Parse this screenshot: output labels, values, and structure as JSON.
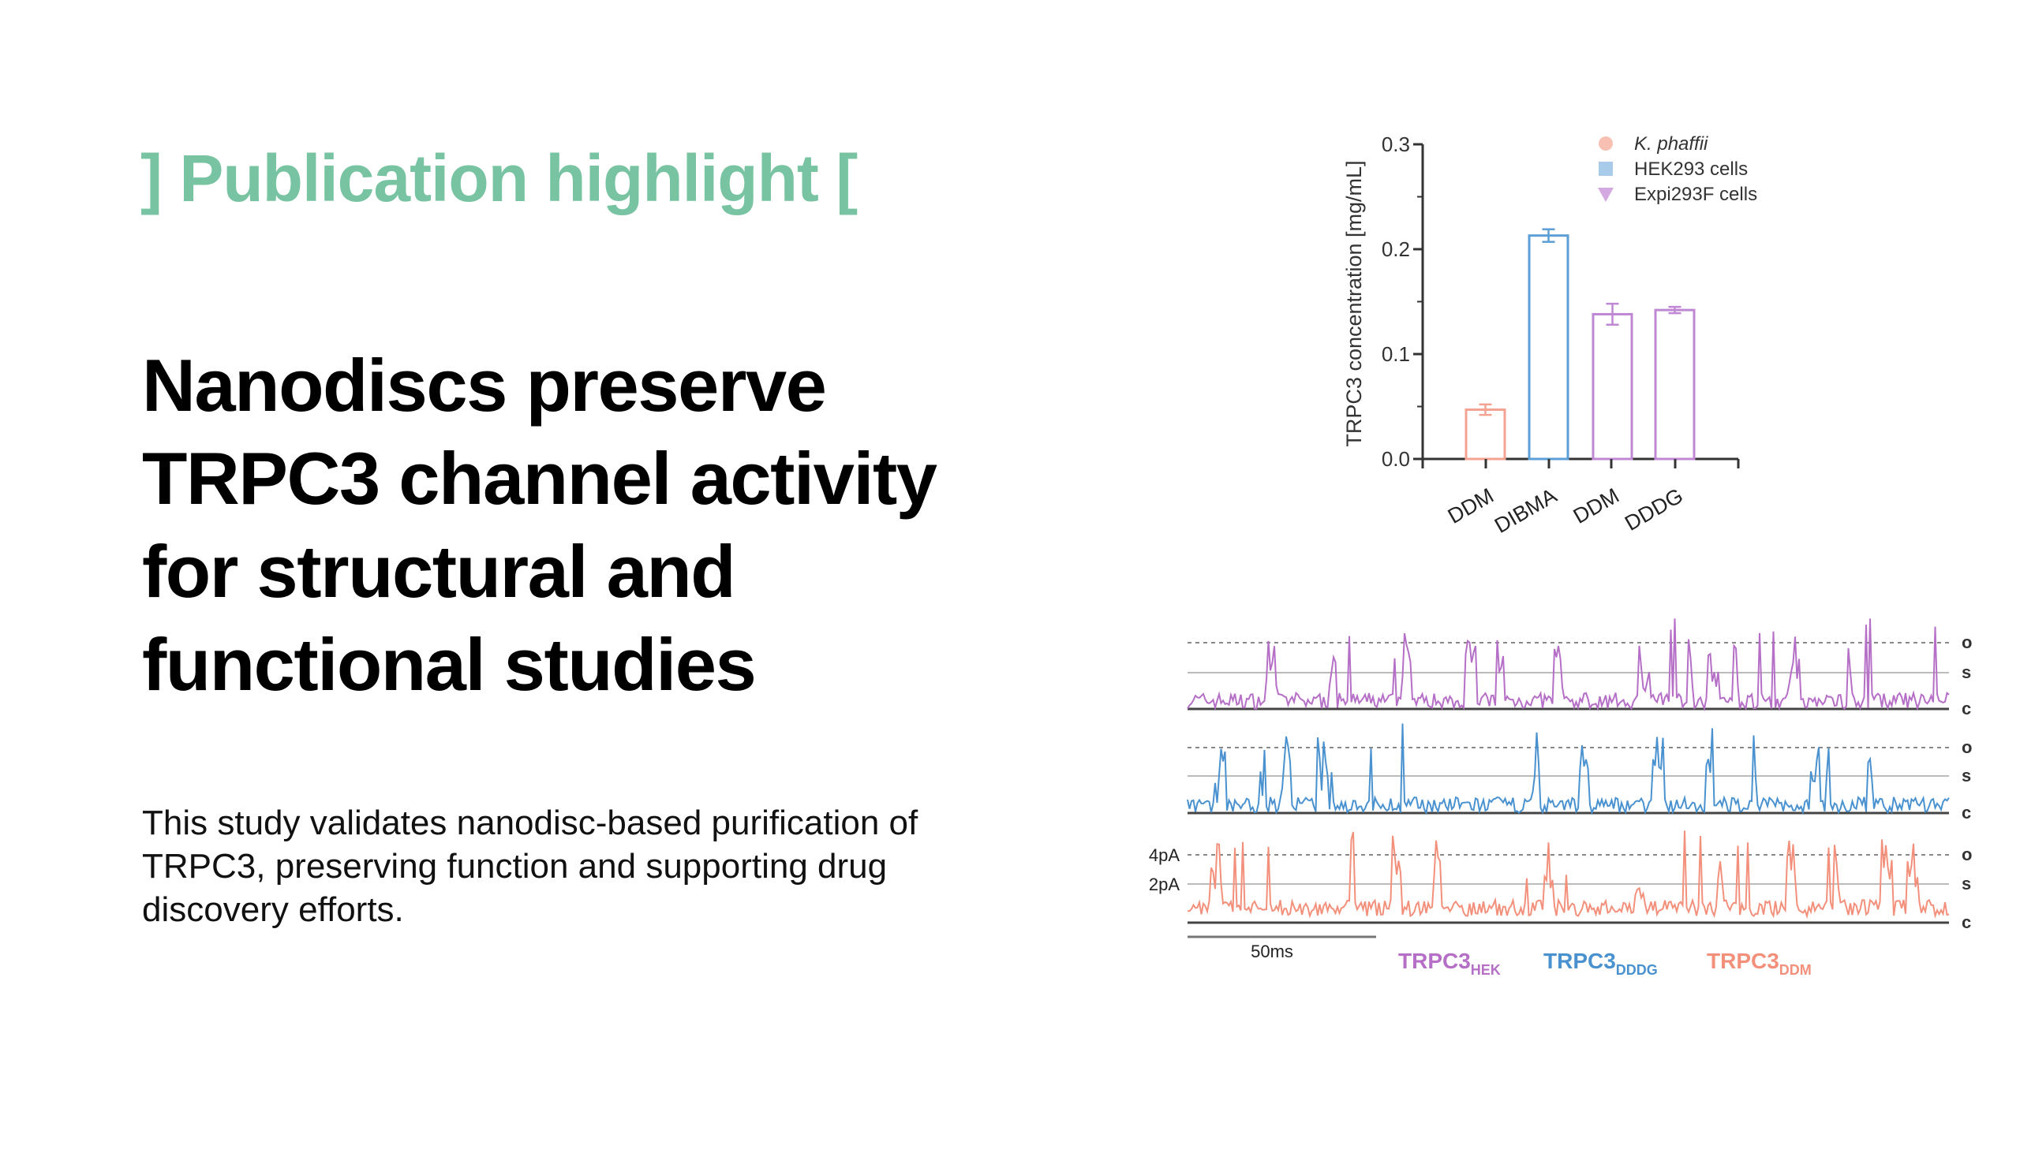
{
  "header": {
    "bracket_left": "]",
    "kicker": "Publication highlight",
    "bracket_right": "[",
    "accent_color": "#78c4a2"
  },
  "title_lines": [
    "Nanodiscs preserve",
    "TRPC3 channel activity",
    "for structural and",
    "functional studies"
  ],
  "description": "This study validates nanodisc-based purification of TRPC3, preserving function and supporting drug discovery efforts.",
  "chart_data": [
    {
      "type": "bar",
      "ylabel": "TRPC3 concentration [mg/mL]",
      "ylim": [
        0,
        0.3
      ],
      "yticks": [
        "0.0",
        "0.1",
        "0.2",
        "0.3"
      ],
      "ytick_values": [
        0,
        0.1,
        0.2,
        0.3
      ],
      "categories": [
        "DDM",
        "DIBMA",
        "DDM",
        "DDDG"
      ],
      "values": [
        0.047,
        0.213,
        0.138,
        0.142
      ],
      "errors": [
        0.005,
        0.006,
        0.01,
        0.003
      ],
      "bar_groups": [
        "K. phaffii",
        "HEK293 cells",
        "Expi293F cells",
        "Expi293F cells"
      ],
      "legend": [
        {
          "label": "K. phaffii",
          "marker": "circle",
          "color": "#f7c0b3",
          "italic": true
        },
        {
          "label": "HEK293 cells",
          "marker": "square",
          "color": "#a9cbea",
          "italic": false
        },
        {
          "label": "Expi293F cells",
          "marker": "triangle-down",
          "color": "#d4a8e0",
          "italic": false
        }
      ],
      "legend_position": "top-right",
      "colors": [
        "#f4a393",
        "#5b9fd6",
        "#c088d4",
        "#c088d4"
      ]
    },
    {
      "type": "line",
      "series": [
        {
          "name": "TRPC3",
          "subscript": "HEK",
          "color": "#b56fc6"
        },
        {
          "name": "TRPC3",
          "subscript": "DDDG",
          "color": "#4a92cf"
        },
        {
          "name": "TRPC3",
          "subscript": "DDM",
          "color": "#f3907c"
        }
      ],
      "levels": [
        "o",
        "s",
        "c"
      ],
      "amplitude_labels": [
        "4pA",
        "2pA"
      ],
      "scale_bar": "50ms"
    }
  ]
}
